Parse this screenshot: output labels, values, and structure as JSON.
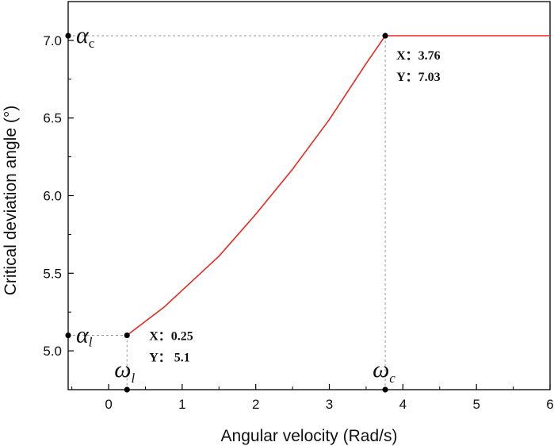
{
  "chart_data": {
    "type": "line",
    "xlabel": "Angular velocity (Rad/s)",
    "ylabel": "Critical deviation angle (°)",
    "xlim": [
      -0.55,
      6
    ],
    "ylim": [
      4.75,
      7.25
    ],
    "xticks": [
      0,
      1,
      2,
      3,
      4,
      5,
      6
    ],
    "yticks": [
      5.0,
      5.5,
      6.0,
      6.5,
      7.0
    ],
    "xtick_labels": [
      "0",
      "1",
      "2",
      "3",
      "4",
      "5",
      "6"
    ],
    "ytick_labels": [
      "5.0",
      "5.5",
      "6.0",
      "6.5",
      "7.0"
    ],
    "grid": false,
    "series": [
      {
        "color": "#e8281e",
        "x": [
          0.25,
          0.75,
          1.0,
          1.5,
          2.0,
          2.5,
          3.0,
          3.5,
          3.76,
          4.0,
          5.0,
          6.0
        ],
        "y": [
          5.1,
          5.28,
          5.39,
          5.61,
          5.88,
          6.17,
          6.49,
          6.85,
          7.03,
          7.03,
          7.03,
          7.03
        ]
      }
    ],
    "annotations": [
      {
        "x": 0.25,
        "y": 5.1,
        "x_text": "X：0.25",
        "y_text": "Y：  5.1"
      },
      {
        "x": 3.76,
        "y": 7.03,
        "x_text": "X：3.76",
        "y_text": "Y：7.03"
      }
    ],
    "markers": {
      "omega_l": {
        "symbol": "ω",
        "sub": "l",
        "x": 0.25
      },
      "omega_c": {
        "symbol": "ω",
        "sub": "c",
        "x": 3.76
      },
      "alpha_l": {
        "symbol": "α",
        "sub": "l",
        "y": 5.1
      },
      "alpha_c": {
        "symbol": "α",
        "sub": "c",
        "y": 7.03
      }
    }
  }
}
